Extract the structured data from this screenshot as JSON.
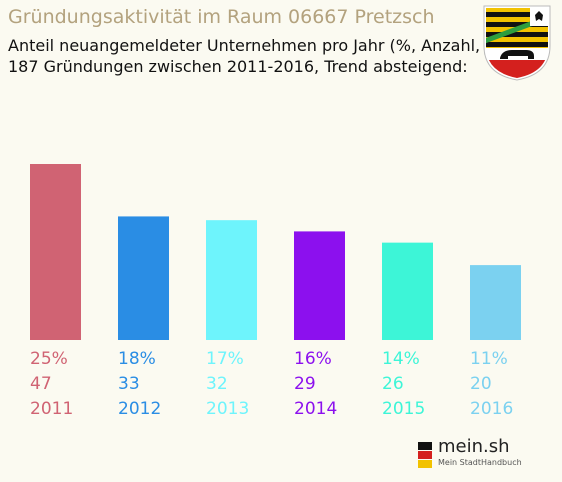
{
  "header": {
    "title": "Gründungsaktivität im Raum 06667 Pretzsch",
    "subtitle_line1": "Anteil neuangemeldeter Unternehmen pro Jahr (%, Anzahl, Jahr)",
    "subtitle_line2": "187 Gründungen zwischen 2011-2016, Trend absteigend:"
  },
  "crest": {
    "icon": "saxony-anhalt-coat-of-arms-icon"
  },
  "brand": {
    "name": "mein.sh",
    "tagline": "Mein StadtHandbuch",
    "icon": "germany-map-icon"
  },
  "chart_data": {
    "type": "bar",
    "categories": [
      "2011",
      "2012",
      "2013",
      "2014",
      "2015",
      "2016"
    ],
    "values": [
      47,
      33,
      32,
      29,
      26,
      20
    ],
    "percent_labels": [
      "25%",
      "18%",
      "17%",
      "16%",
      "14%",
      "11%"
    ],
    "count_labels": [
      "47",
      "33",
      "32",
      "29",
      "26",
      "20"
    ],
    "colors": [
      "#d06373",
      "#2a8de4",
      "#6ef4fc",
      "#8c10ee",
      "#3df5d7",
      "#7bd1f0"
    ],
    "grid": false,
    "legend": "none"
  }
}
